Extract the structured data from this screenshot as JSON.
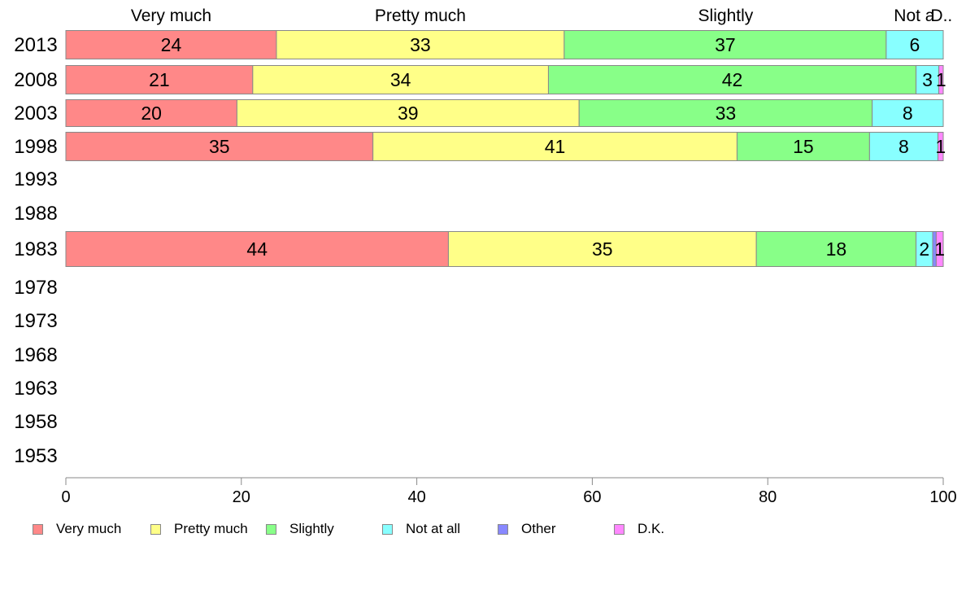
{
  "chart_data": {
    "type": "bar",
    "orientation": "horizontal",
    "stacked": true,
    "categories": [
      "2013",
      "2008",
      "2003",
      "1998",
      "1993",
      "1988",
      "1983",
      "1978",
      "1973",
      "1968",
      "1963",
      "1958",
      "1953"
    ],
    "series": [
      {
        "name": "Very much",
        "color": "#ff8888",
        "values": [
          24,
          21.3,
          19.5,
          35,
          null,
          null,
          43.6,
          null,
          null,
          null,
          null,
          null,
          null
        ],
        "labels": [
          "24",
          "21",
          "20",
          "35",
          "",
          "",
          "44",
          "",
          "",
          "",
          "",
          "",
          ""
        ]
      },
      {
        "name": "Pretty much",
        "color": "#ffff88",
        "values": [
          32.8,
          33.7,
          39,
          41.5,
          null,
          null,
          35.1,
          null,
          null,
          null,
          null,
          null,
          null
        ],
        "labels": [
          "33",
          "34",
          "39",
          "41",
          "",
          "",
          "35",
          "",
          "",
          "",
          "",
          "",
          ""
        ]
      },
      {
        "name": "Slightly",
        "color": "#88ff88",
        "values": [
          36.7,
          41.9,
          33.4,
          15.1,
          null,
          null,
          18.2,
          null,
          null,
          null,
          null,
          null,
          null
        ],
        "labels": [
          "37",
          "42",
          "33",
          "15",
          "",
          "",
          "18",
          "",
          "",
          "",
          "",
          "",
          ""
        ]
      },
      {
        "name": "Not at all",
        "color": "#88ffff",
        "values": [
          6.5,
          2.6,
          8.1,
          7.8,
          null,
          null,
          1.9,
          null,
          null,
          null,
          null,
          null,
          null
        ],
        "labels": [
          "6",
          "3",
          "8",
          "8",
          "",
          "",
          "2",
          "",
          "",
          "",
          "",
          "",
          ""
        ]
      },
      {
        "name": "Other",
        "color": "#8888ff",
        "values": [
          0,
          0,
          0,
          0,
          null,
          null,
          0.4,
          null,
          null,
          null,
          null,
          null,
          null
        ],
        "labels": [
          "",
          "",
          "",
          "",
          "",
          "",
          "",
          "",
          "",
          "",
          "",
          "",
          ""
        ]
      },
      {
        "name": "D.K.",
        "color": "#ff88ff",
        "values": [
          0,
          0.5,
          0,
          0.6,
          null,
          null,
          0.8,
          null,
          null,
          null,
          null,
          null,
          null
        ],
        "labels": [
          "",
          "1",
          "",
          "1",
          "",
          "",
          "1",
          "",
          "",
          "",
          "",
          "",
          ""
        ]
      }
    ],
    "top_labels": [
      {
        "text": "Very much",
        "x": 12
      },
      {
        "text": "Pretty much",
        "x": 40.4
      },
      {
        "text": "Slightly",
        "x": 75.2
      },
      {
        "text": "Not at all",
        "x": 96.7
      },
      {
        "text": "D.K.",
        "x": 99.8
      }
    ],
    "top_labels_display": [
      "Very much",
      "Pretty much",
      "Slightly",
      "Not a",
      "D..",
      "D.K."
    ],
    "xlim": [
      0,
      100
    ],
    "xticks": [
      0,
      20,
      40,
      60,
      80,
      100
    ],
    "grid": false,
    "legend_position": "bottom"
  }
}
